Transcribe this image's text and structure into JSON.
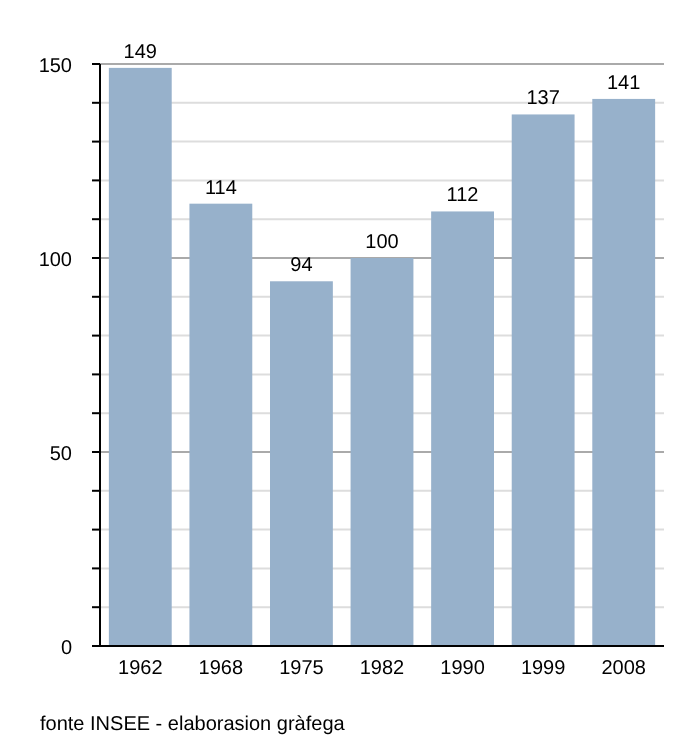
{
  "chart_data": {
    "type": "bar",
    "categories": [
      "1962",
      "1968",
      "1975",
      "1982",
      "1990",
      "1999",
      "2008"
    ],
    "values": [
      149,
      114,
      94,
      100,
      112,
      137,
      141
    ],
    "color": "#97b1cb",
    "data_labels": true,
    "grid": true,
    "ylim": [
      0,
      150
    ],
    "yticks": [
      0,
      {
        "value": 10,
        "label": null
      },
      {
        "value": 20,
        "label": null
      },
      {
        "value": 30,
        "label": null
      },
      {
        "value": 40,
        "label": null
      },
      50,
      {
        "value": 60,
        "label": null
      },
      {
        "value": 70,
        "label": null
      },
      {
        "value": 80,
        "label": null
      },
      {
        "value": 90,
        "label": null
      },
      100,
      {
        "value": 110,
        "label": null
      },
      {
        "value": 120,
        "label": null
      },
      {
        "value": 130,
        "label": null
      },
      {
        "value": 140,
        "label": null
      },
      150
    ],
    "annotations": [
      "fonte INSEE - elaborasion gràfega"
    ]
  }
}
